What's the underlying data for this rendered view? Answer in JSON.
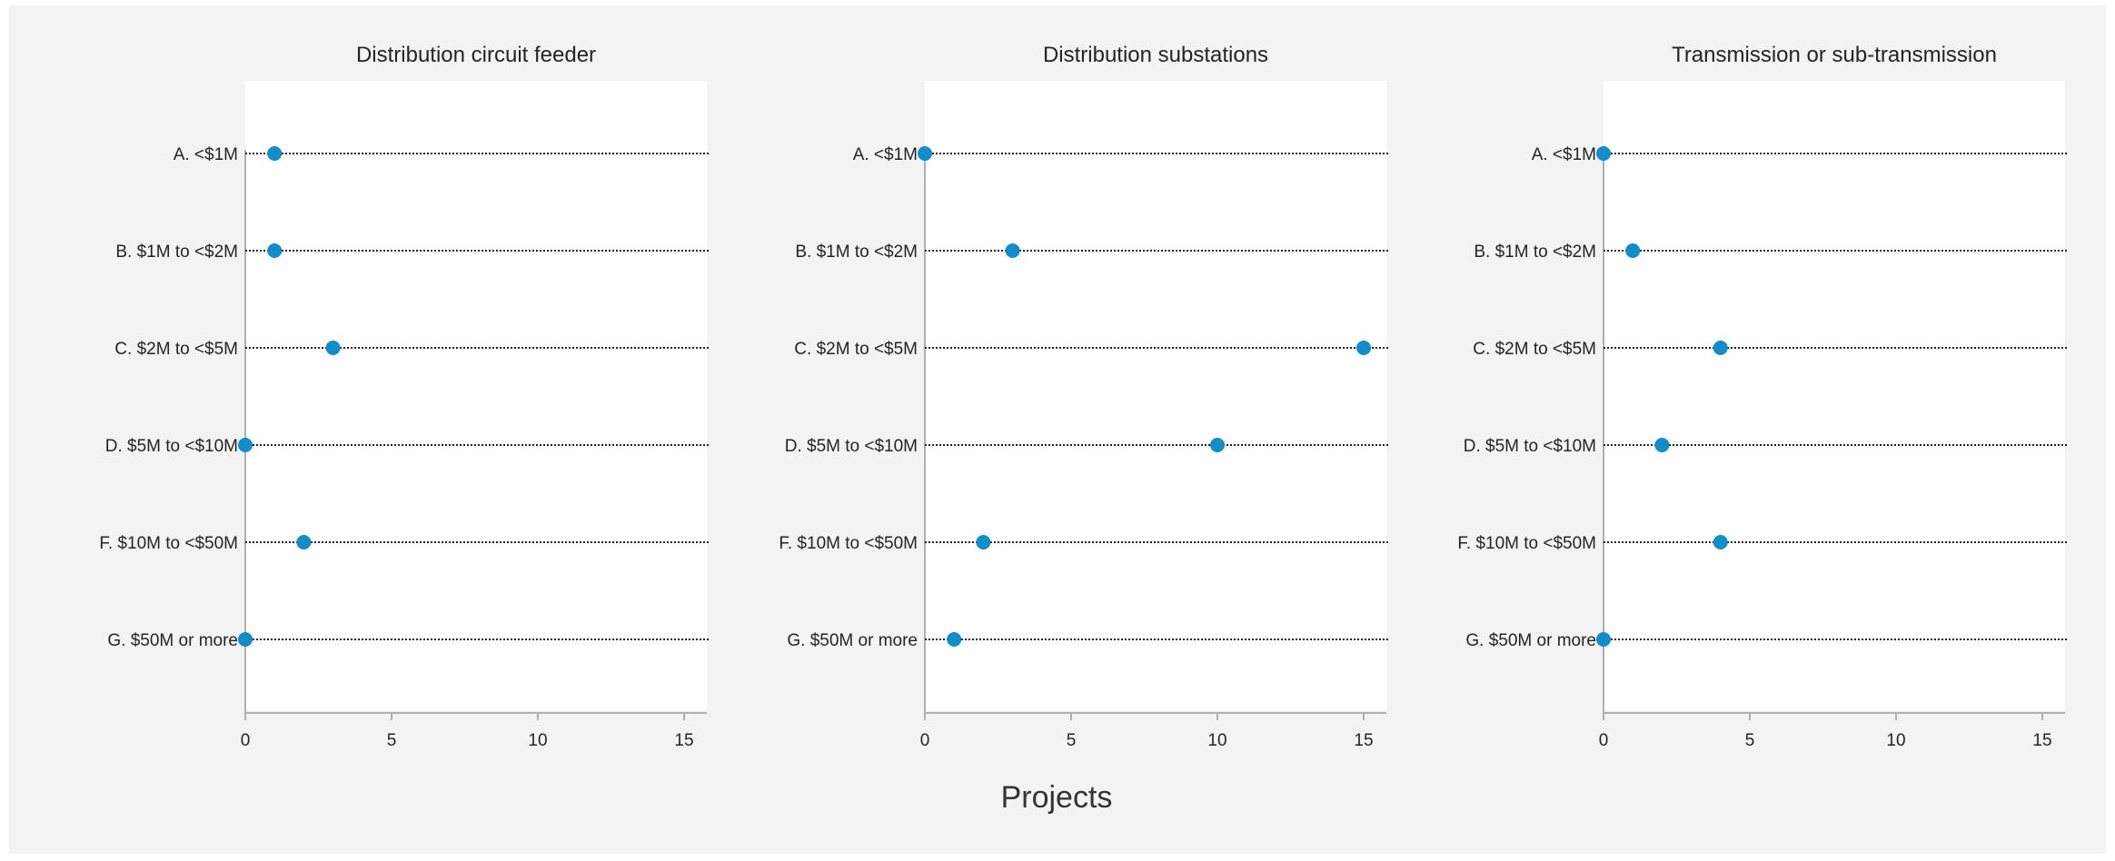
{
  "chart_data": {
    "type": "scatter",
    "subtype": "dot-plot",
    "xlabel": "Projects",
    "xlim": [
      0,
      15
    ],
    "x_ticks": [
      0,
      5,
      10,
      15
    ],
    "dot_color": "#118DCA",
    "categories": [
      "A. <$1M",
      "B. $1M to <$2M",
      "C. $2M to <$5M",
      "D. $5M to <$10M",
      "F. $10M to <$50M",
      "G. $50M or more"
    ],
    "panels": [
      {
        "title": "Distribution circuit feeder",
        "values": [
          1,
          1,
          3,
          0,
          2,
          0
        ]
      },
      {
        "title": "Distribution substations",
        "values": [
          0,
          3,
          15,
          10,
          2,
          1
        ]
      },
      {
        "title": "Transmission or sub-transmission",
        "values": [
          0,
          1,
          4,
          2,
          4,
          0
        ]
      }
    ],
    "grid": "dotted horizontal lines per category",
    "legend": "none"
  }
}
